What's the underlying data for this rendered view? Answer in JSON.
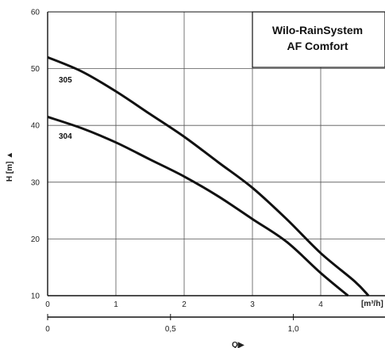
{
  "chart_data": {
    "type": "line",
    "title_lines": [
      "Wilo-RainSystem",
      "AF  Comfort"
    ],
    "ylabel": "H  [m] ▲",
    "xlabel_primary_unit": "[m³/h]",
    "xlabel_secondary": "Q▶",
    "ylim": [
      10,
      60
    ],
    "yticks": [
      10,
      20,
      30,
      40,
      50,
      60
    ],
    "xlim": [
      0,
      4.7
    ],
    "xticks": [
      0,
      1,
      2,
      3,
      4
    ],
    "secondary_axis": {
      "ticks": [
        0,
        0.5,
        1.0
      ],
      "tick_labels": [
        "0",
        "0,5",
        "1,0"
      ],
      "factor": 3.6
    },
    "grid": true,
    "series": [
      {
        "name": "305",
        "x": [
          0,
          0.5,
          1.0,
          1.5,
          2.0,
          2.5,
          3.0,
          3.5,
          4.0,
          4.5,
          4.7
        ],
        "y": [
          52,
          49.5,
          46,
          42,
          38,
          33.5,
          29,
          23.5,
          17.5,
          12.5,
          10
        ]
      },
      {
        "name": "304",
        "x": [
          0,
          0.5,
          1.0,
          1.5,
          2.0,
          2.5,
          3.0,
          3.5,
          4.0,
          4.4
        ],
        "y": [
          41.5,
          39.5,
          37,
          34,
          31,
          27.5,
          23.5,
          19.5,
          14,
          10
        ]
      }
    ]
  }
}
